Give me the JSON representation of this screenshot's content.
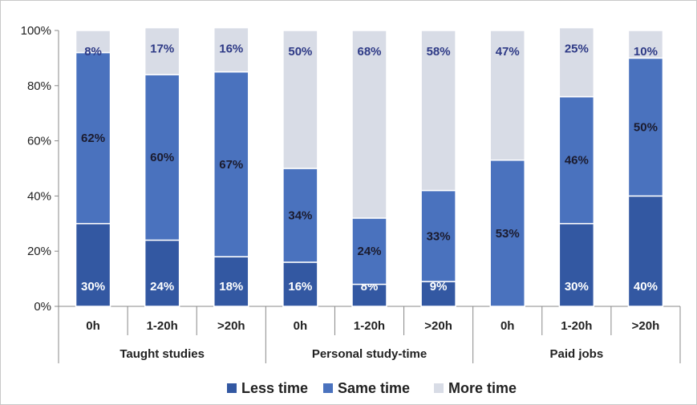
{
  "chart_data": {
    "type": "bar",
    "stacked": true,
    "percent": true,
    "categories": [
      "0h",
      "1-20h",
      ">20h",
      "0h",
      "1-20h",
      ">20h",
      "0h",
      "1-20h",
      ">20h"
    ],
    "groups": [
      {
        "label": "Taught studies",
        "count": 3
      },
      {
        "label": "Personal study-time",
        "count": 3
      },
      {
        "label": "Paid jobs",
        "count": 3
      }
    ],
    "series": [
      {
        "name": "Less time",
        "color": "#3358a2",
        "values": [
          30,
          24,
          18,
          16,
          8,
          9,
          0,
          30,
          40
        ],
        "labels": [
          "30%",
          "24%",
          "18%",
          "16%",
          "8%",
          "9%",
          "",
          "30%",
          "40%"
        ],
        "label_color": "#ffffff"
      },
      {
        "name": "Same time",
        "color": "#4a72be",
        "values": [
          62,
          60,
          67,
          34,
          24,
          33,
          53,
          46,
          50
        ],
        "labels": [
          "62%",
          "60%",
          "67%",
          "34%",
          "24%",
          "33%",
          "53%",
          "46%",
          "50%"
        ],
        "label_color": "#1b1b2e"
      },
      {
        "name": "More time",
        "color": "#d8dce6",
        "values": [
          8,
          17,
          16,
          50,
          68,
          58,
          47,
          25,
          10
        ],
        "labels": [
          "8%",
          "17%",
          "16%",
          "50%",
          "68%",
          "58%",
          "47%",
          "25%",
          "10%"
        ],
        "label_color": "#2e3a86"
      }
    ],
    "y_ticks": [
      "0%",
      "20%",
      "40%",
      "60%",
      "80%",
      "100%"
    ],
    "ylim": [
      0,
      100
    ],
    "grid": false,
    "legend_position": "bottom"
  }
}
